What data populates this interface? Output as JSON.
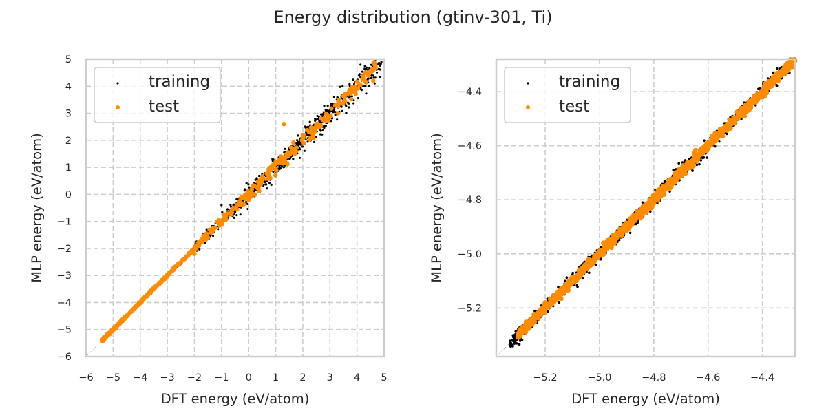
{
  "figure": {
    "title": "Energy distribution (gtinv-301, Ti)"
  },
  "colors": {
    "training": "#000000",
    "test": "#ff8c00",
    "grid": "#cccccc",
    "spine": "#cccccc",
    "diagonal": "#999999"
  },
  "chart_data": [
    {
      "type": "scatter",
      "title": "",
      "xlabel": "DFT energy (eV/atom)",
      "ylabel": "MLP energy (eV/atom)",
      "xlim": [
        -6,
        5
      ],
      "ylim": [
        -6,
        5
      ],
      "xticks": [
        -6,
        -5,
        -4,
        -3,
        -2,
        -1,
        0,
        1,
        2,
        3,
        4,
        5
      ],
      "xtick_labels": [
        "−6",
        "−5",
        "−4",
        "−3",
        "−2",
        "−1",
        "0",
        "1",
        "2",
        "3",
        "4",
        "5"
      ],
      "yticks": [
        -6,
        -5,
        -4,
        -3,
        -2,
        -1,
        0,
        1,
        2,
        3,
        4,
        5
      ],
      "ytick_labels": [
        "−6",
        "−5",
        "−4",
        "−3",
        "−2",
        "−1",
        "0",
        "1",
        "2",
        "3",
        "4",
        "5"
      ],
      "grid": true,
      "grid_style": "dashed",
      "diagonal_line": "y = x (dotted gray)",
      "legend": {
        "position": "top-left",
        "entries": [
          "training",
          "test"
        ]
      },
      "series": [
        {
          "name": "training",
          "marker": "small dot",
          "distribution": "points scattered along y=x from about -5.35 to 4.9; tight below -2, spread ~±0.3 above 0",
          "sample_points": [
            [
              -5.3,
              -5.3
            ],
            [
              -4.0,
              -4.0
            ],
            [
              -3.0,
              -3.0
            ],
            [
              -2.0,
              -2.0
            ],
            [
              -1.0,
              -0.95
            ],
            [
              -1.0,
              -0.4
            ],
            [
              0.0,
              0.1
            ],
            [
              0.3,
              0.6
            ],
            [
              0.5,
              0.35
            ],
            [
              1.0,
              1.0
            ],
            [
              1.5,
              1.5
            ],
            [
              2.0,
              2.1
            ],
            [
              2.5,
              2.5
            ],
            [
              3.0,
              3.1
            ],
            [
              3.5,
              3.4
            ],
            [
              4.0,
              4.0
            ],
            [
              4.5,
              4.3
            ],
            [
              4.9,
              4.9
            ]
          ]
        },
        {
          "name": "test",
          "marker": "orange dot",
          "distribution": "points along y=x from about -5.4 to 4.7, with some outliers",
          "sample_points": [
            [
              -5.35,
              -5.3
            ],
            [
              -4.5,
              -4.5
            ],
            [
              -3.5,
              -3.5
            ],
            [
              -2.0,
              -2.2
            ],
            [
              -1.5,
              -1.6
            ],
            [
              -1.0,
              -1.0
            ],
            [
              0.0,
              -0.2
            ],
            [
              0.4,
              0.5
            ],
            [
              0.8,
              0.6
            ],
            [
              1.0,
              1.2
            ],
            [
              1.3,
              2.6
            ],
            [
              1.7,
              1.5
            ],
            [
              2.0,
              2.2
            ],
            [
              2.5,
              2.6
            ],
            [
              3.3,
              3.0
            ],
            [
              4.3,
              4.5
            ],
            [
              4.6,
              4.2
            ],
            [
              4.6,
              4.6
            ]
          ]
        }
      ]
    },
    {
      "type": "scatter",
      "title": "",
      "xlabel": "DFT energy (eV/atom)",
      "ylabel": "MLP energy (eV/atom)",
      "xlim": [
        -5.38,
        -4.28
      ],
      "ylim": [
        -5.38,
        -4.28
      ],
      "xticks": [
        -5.2,
        -5.0,
        -4.8,
        -4.6,
        -4.4
      ],
      "xtick_labels": [
        "−5.2",
        "−5.0",
        "−4.8",
        "−4.6",
        "−4.4"
      ],
      "yticks": [
        -5.2,
        -5.0,
        -4.8,
        -4.6,
        -4.4
      ],
      "ytick_labels": [
        "−5.2",
        "−5.0",
        "−4.8",
        "−4.6",
        "−4.4"
      ],
      "grid": true,
      "grid_style": "dashed",
      "diagonal_line": "y = x (dotted gray)",
      "legend": {
        "position": "top-left",
        "entries": [
          "training",
          "test"
        ]
      },
      "series": [
        {
          "name": "training",
          "marker": "small dot",
          "distribution": "dense band along y=x from -5.33 to -4.28, spread ~±0.02",
          "sample_points": [
            [
              -5.32,
              -5.32
            ],
            [
              -5.2,
              -5.2
            ],
            [
              -5.0,
              -5.0
            ],
            [
              -4.8,
              -4.8
            ],
            [
              -4.6,
              -4.6
            ],
            [
              -4.4,
              -4.4
            ],
            [
              -4.3,
              -4.33
            ]
          ]
        },
        {
          "name": "test",
          "marker": "orange dot",
          "distribution": "dense band along y=x from -5.3 to -4.28, overlapping training",
          "sample_points": [
            [
              -5.3,
              -5.3
            ],
            [
              -5.2,
              -5.18
            ],
            [
              -5.0,
              -5.0
            ],
            [
              -4.8,
              -4.8
            ],
            [
              -4.6,
              -4.6
            ],
            [
              -4.4,
              -4.4
            ],
            [
              -4.3,
              -4.3
            ]
          ]
        }
      ]
    }
  ]
}
